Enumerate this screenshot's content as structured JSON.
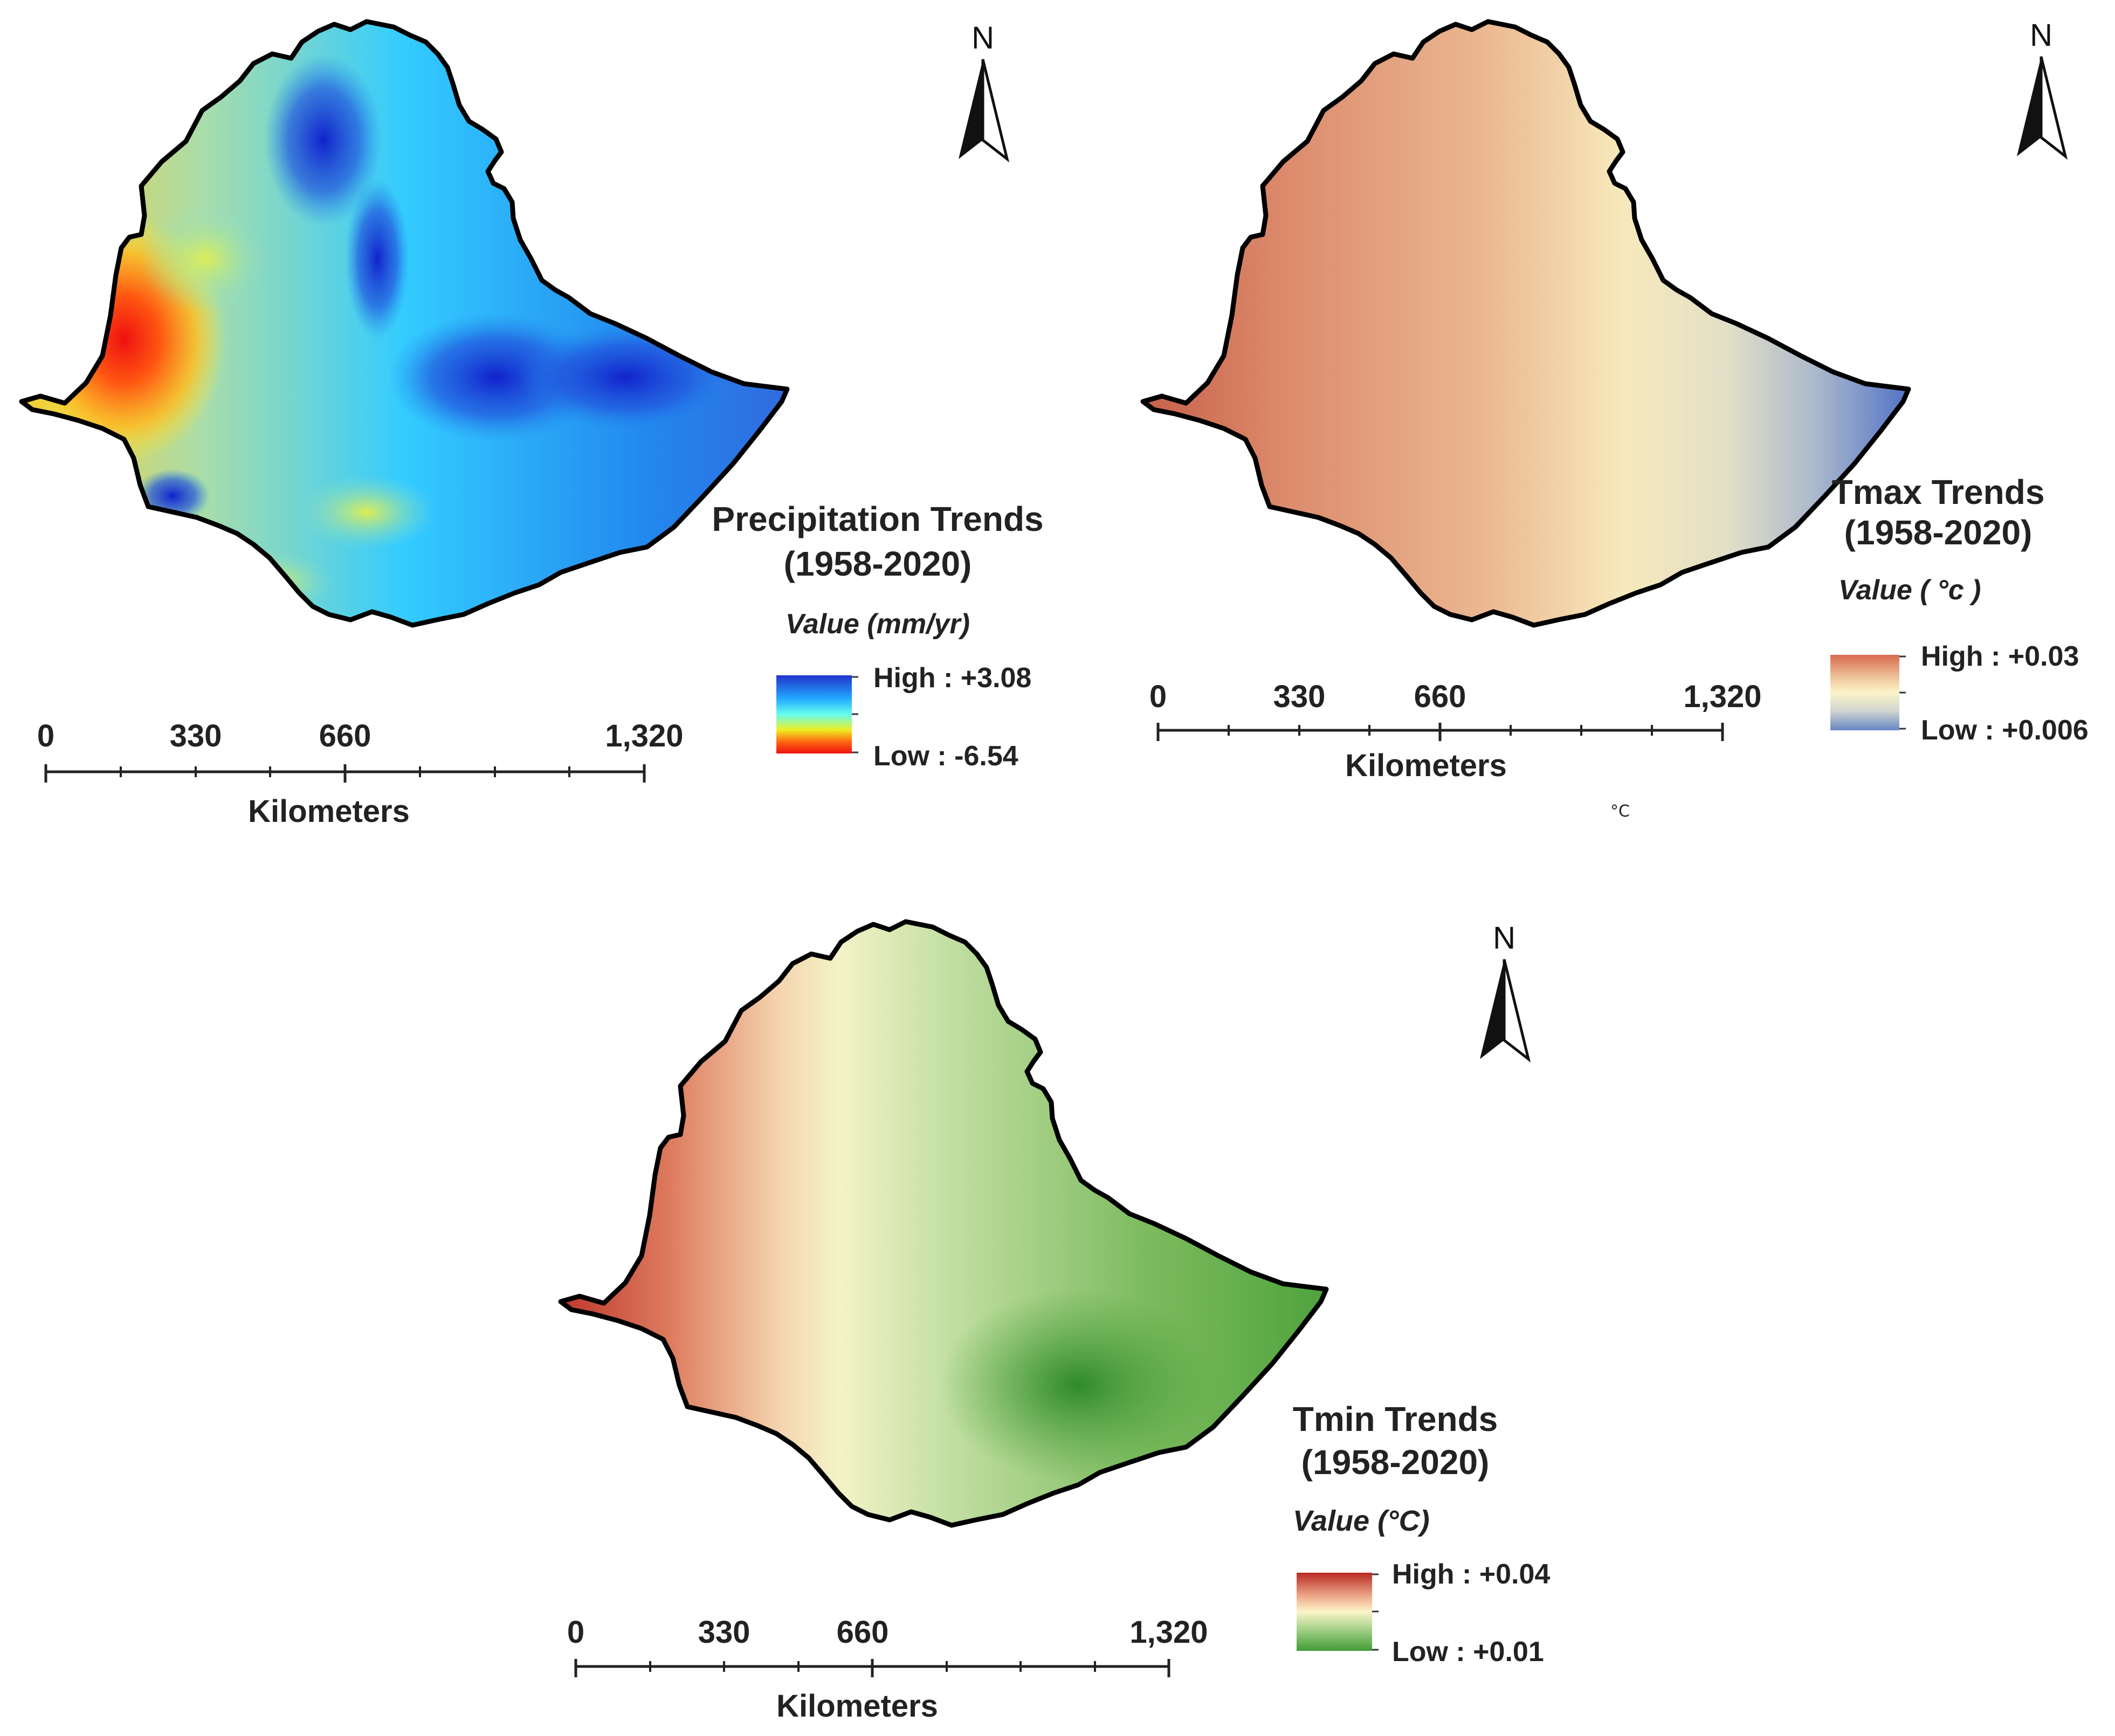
{
  "maps": [
    {
      "title_line1": "Precipitation Trends",
      "title_line2": "(1958-2020)",
      "value_label": "Value (mm/yr)",
      "legend_high": "High : +3.08",
      "legend_low": "Low : -6.54",
      "colors": [
        "#2233cc",
        "#22aaff",
        "#66ffee",
        "#eeee22",
        "#ff6611",
        "#ee1111"
      ]
    },
    {
      "title_line1": "Tmax Trends",
      "title_line2": "(1958-2020)",
      "value_label": "Value ( °c )",
      "legend_high": "High : +0.03",
      "legend_low": "Low : +0.006",
      "colors": [
        "#d86a50",
        "#eec49a",
        "#fbf5c8",
        "#cfd3cf",
        "#6485c4"
      ]
    },
    {
      "title_line1": "Tmin Trends",
      "title_line2": "(1958-2020)",
      "value_label": "Value (°C)",
      "legend_high": "High : +0.04",
      "legend_low": "Low : +0.01",
      "colors": [
        "#b82a22",
        "#eea88a",
        "#fbf5c8",
        "#9ccd82",
        "#3f9b34"
      ]
    }
  ],
  "scale_bar": {
    "ticks": [
      "0",
      "330",
      "660",
      "1,320"
    ],
    "unit": "Kilometers"
  },
  "north_label": "N",
  "stray_unit": "°C"
}
